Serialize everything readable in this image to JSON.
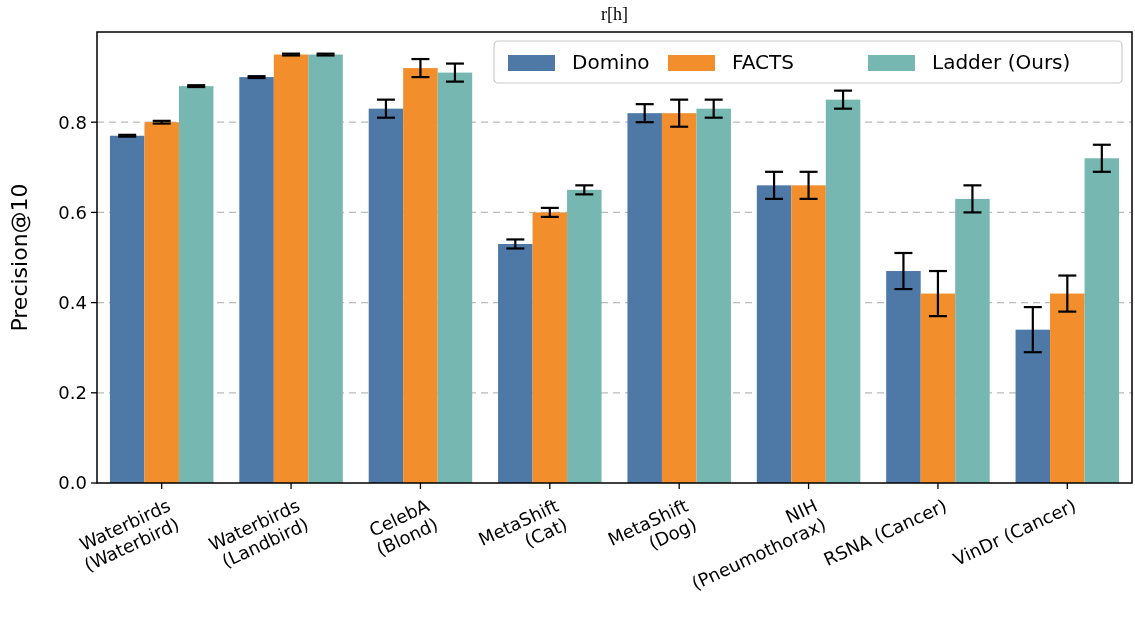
{
  "chart_data": {
    "type": "bar",
    "title": "r[h]",
    "ylabel": "Precision@10",
    "categories": [
      "Waterbirds\n(Waterbird)",
      "Waterbirds\n(Landbird)",
      "CelebA\n(Blond)",
      "MetaShift\n(Cat)",
      "MetaShift\n(Dog)",
      "NIH\n(Pneumothorax)",
      "RSNA (Cancer)",
      "VinDr (Cancer)"
    ],
    "series": [
      {
        "name": "Domino",
        "color": "#4e79a7",
        "values": [
          0.77,
          0.9,
          0.83,
          0.53,
          0.82,
          0.66,
          0.47,
          0.34
        ],
        "errors": [
          0.002,
          0.002,
          0.02,
          0.01,
          0.02,
          0.03,
          0.04,
          0.05
        ]
      },
      {
        "name": "FACTS",
        "color": "#f28e2b",
        "values": [
          0.8,
          0.95,
          0.92,
          0.6,
          0.82,
          0.66,
          0.42,
          0.42
        ],
        "errors": [
          0.003,
          0.002,
          0.02,
          0.01,
          0.03,
          0.03,
          0.05,
          0.04
        ]
      },
      {
        "name": "Ladder (Ours)",
        "color": "#76b7b2",
        "values": [
          0.88,
          0.95,
          0.91,
          0.65,
          0.83,
          0.85,
          0.63,
          0.72
        ],
        "errors": [
          0.002,
          0.002,
          0.02,
          0.01,
          0.02,
          0.02,
          0.03,
          0.03
        ]
      }
    ],
    "ylim": [
      0,
      1
    ],
    "yticks": [
      {
        "value": 0,
        "label": "0.0"
      },
      {
        "value": 0.2,
        "label": "0.2"
      },
      {
        "value": 0.4,
        "label": "0.4"
      },
      {
        "value": 0.6,
        "label": "0.6"
      },
      {
        "value": 0.8,
        "label": "0.8"
      }
    ],
    "grid": "y",
    "legend": "top right"
  }
}
